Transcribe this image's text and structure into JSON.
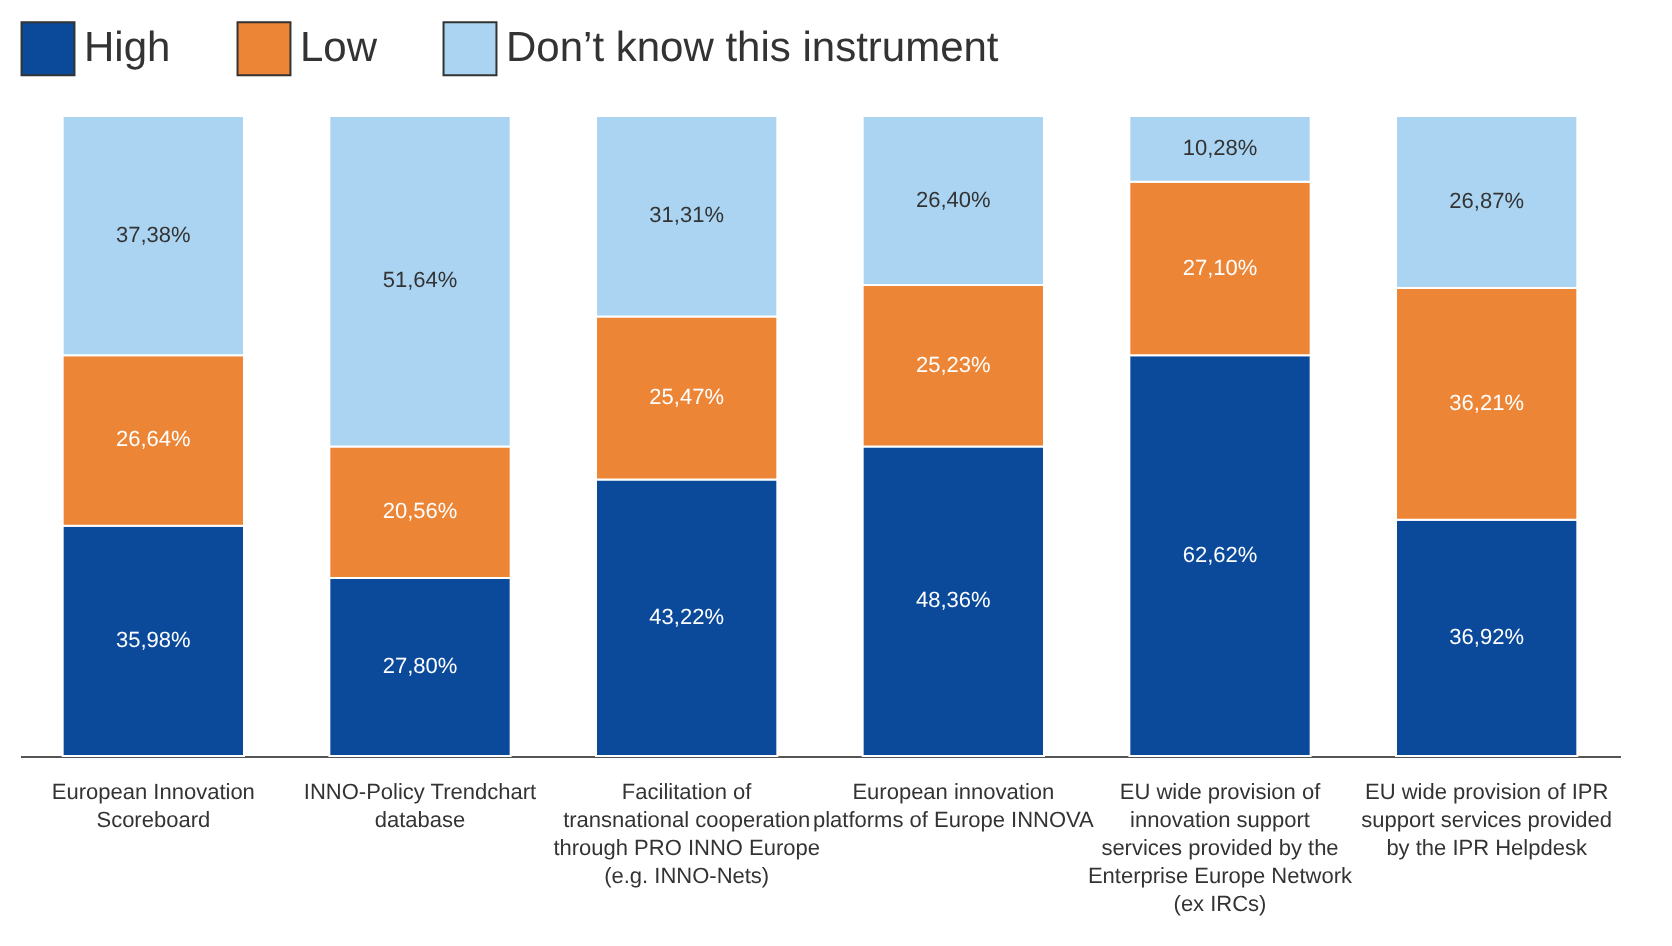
{
  "chart_data": {
    "type": "bar",
    "stacked": true,
    "legend": "top",
    "tick_labels": "x",
    "categories": [
      "European Innovation Scoreboard",
      "INNO-Policy Trendchart database",
      "Facilitation of transnational cooperation through PRO INNO Europe (e.g. INNO-Nets)",
      "European innovation platforms of Europe INNOVA",
      "EU wide provision of innovation support services provided by the Enterprise Europe Network (ex IRCs)",
      "EU wide provision of IPR support services provided by the IPR Helpdesk"
    ],
    "series": [
      {
        "name": "High",
        "color": "#0b4a9b",
        "values": [
          35.98,
          27.8,
          43.22,
          48.36,
          62.62,
          36.92
        ],
        "value_labels": [
          "35,98%",
          "27,80%",
          "43,22%",
          "48,36%",
          "62,62%",
          "36,92%"
        ]
      },
      {
        "name": "Low",
        "color": "#ec8535",
        "values": [
          26.64,
          20.56,
          25.47,
          25.23,
          27.1,
          36.21
        ],
        "value_labels": [
          "26,64%",
          "20,56%",
          "25,47%",
          "25,23%",
          "27,10%",
          "36,21%"
        ]
      },
      {
        "name": "Don’t know this instrument",
        "color": "#aad4f2",
        "values": [
          37.38,
          51.64,
          31.31,
          26.4,
          10.28,
          26.87
        ],
        "value_labels": [
          "37,38%",
          "51,64%",
          "31,31%",
          "26,40%",
          "10,28%",
          "26,87%"
        ]
      }
    ]
  }
}
